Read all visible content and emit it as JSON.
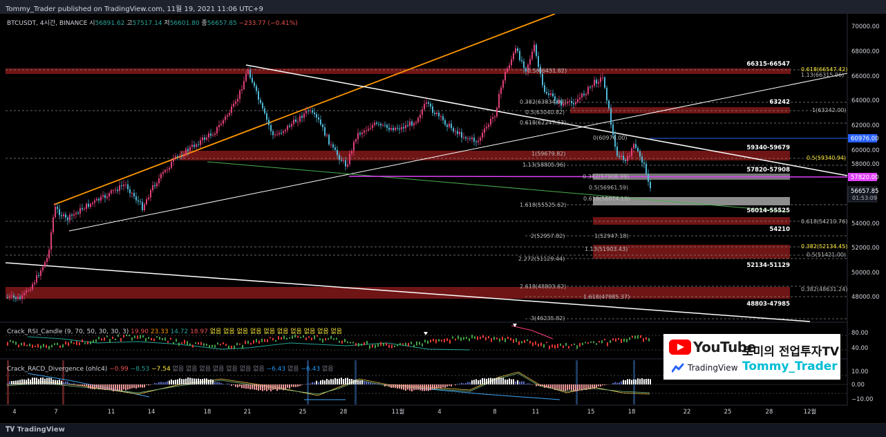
{
  "header": {
    "published": "Tommy_Trader published on TradingView.com, 11월 19, 2021 11:06 UTC+9"
  },
  "symbol": {
    "name": "BTCUSDT, 4시간, BINANCE",
    "open_label": "시",
    "open": "56891.62",
    "high_label": "고",
    "high": "57517.14",
    "low_label": "저",
    "low": "56601.80",
    "close_label": "종",
    "close": "56657.85",
    "change": "−233.77 (−0.41%)"
  },
  "price_axis": {
    "labels": [
      "70000.00",
      "68000.00",
      "66000.00",
      "64000.00",
      "62000.00",
      "60000.00",
      "58000.00",
      "54000.00",
      "52000.00",
      "50000.00",
      "48000.00"
    ],
    "badge_teal": "60976.00",
    "badge_magenta": "57820.00",
    "current_price": "56657.85",
    "countdown": "01:53:09"
  },
  "time_axis": {
    "labels": [
      "4",
      "7",
      "11",
      "14",
      "18",
      "21",
      "25",
      "28",
      "11월",
      "4",
      "8",
      "11",
      "15",
      "18",
      "22",
      "25",
      "28",
      "12월"
    ]
  },
  "zones": {
    "z1": "66315-66547",
    "z2": "63242",
    "z3": "59340-59679",
    "z4": "57820-57908",
    "z5": "56014-55525",
    "z6": "54210",
    "z7": "52134-51129",
    "z8": "48803-47985"
  },
  "fib_labels": {
    "f1": "0.618(66547.42)",
    "f2": "1.13(66315.96)",
    "f3": "1(63242.00)",
    "f4": "0.382(63834.07)",
    "f5": "0.5(63040.82)",
    "f6": "0.618(62247.63)",
    "f7": "0(60976.00)",
    "f8": "1(59679.82)",
    "f9": "0.5(59340.94)",
    "f10": "1.13(58805.96)",
    "f11": "0.382(57908.99)",
    "f12": "0.5(56961.59)",
    "f13": "0.618(56014.19)",
    "f14": "1.618(55525.62)",
    "f15": "0.618(54210.76)",
    "f16": "2(52957.82)",
    "f17": "1(52947.18)",
    "f18": "0.382(52134.45)",
    "f19": "1.13(51903.43)",
    "f20": "0.5(51421.00)",
    "f21": "2.272(51129.44)",
    "f22": "2.618(48803.62)",
    "f23": "0.382(48631.24)",
    "f24": "1.618(47985.37)",
    "f25": "3(46235.82)",
    "f26": "0.5(66431.82)"
  },
  "indicator1": {
    "name": "Crack_RSI_Candle (9, 70, 50, 30, 30, 3)",
    "v1": "19.90",
    "v2": "23.33",
    "v3": "14.72",
    "v4": "18.97",
    "empties": "없음 없음 없음 없음 없음 없음 없음 없음 없음 없음",
    "axis": [
      "80.00",
      "40.00"
    ]
  },
  "indicator2": {
    "name": "Crack_RACD_Divergence (ohlc4)",
    "v1": "−0.99",
    "v2": "−8.53",
    "v3": "−7.54",
    "empties": "없음 없음 없음 없음 없음 없음 없음",
    "v4": "−6.43",
    "e2": "없음",
    "v5": "−6.43",
    "e3": "없음",
    "axis": [
      "10.00",
      "0.00",
      "−10.00"
    ]
  },
  "watermark": {
    "youtube": "YouTube",
    "tradingview": "TradingView",
    "channel_title": "토미의 전업투자TV",
    "channel_handle": "Tommy_Trader"
  },
  "footer": {
    "brand": "TradingView"
  },
  "colors": {
    "background": "#000000",
    "up_candle": "#e0407a",
    "down_candle": "#4fb8d6",
    "zone_red": "#b71c1c",
    "orange_line": "#ff9800",
    "magenta_line": "#e040fb",
    "teal_badge": "#2962ff"
  }
}
